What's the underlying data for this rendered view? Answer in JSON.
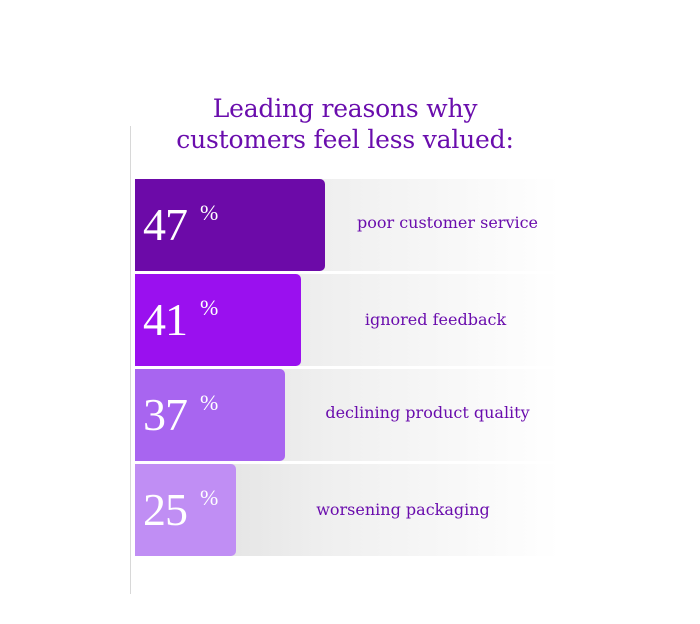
{
  "chart_data": {
    "type": "bar",
    "orientation": "horizontal",
    "title": [
      "Leading reasons why",
      "customers feel less valued:"
    ],
    "categories": [
      "poor customer service",
      "ignored feedback",
      "declining product quality",
      "worsening packaging"
    ],
    "values": [
      47,
      41,
      37,
      25
    ],
    "value_suffix": "%",
    "xlim": [
      0,
      100
    ],
    "grid": false,
    "colors": [
      "#6c0aa8",
      "#9a10ef",
      "#a865f0",
      "#c08ef4"
    ]
  }
}
